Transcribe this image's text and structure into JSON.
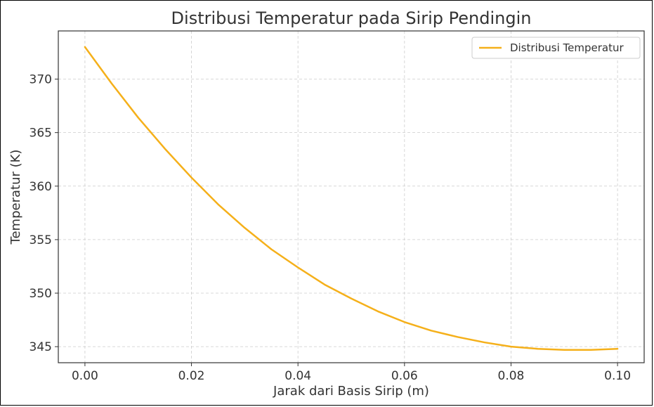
{
  "chart_data": {
    "type": "line",
    "title": "Distribusi Temperatur pada Sirip Pendingin",
    "xlabel": "Jarak dari Basis Sirip (m)",
    "ylabel": "Temperatur (K)",
    "xlim": [
      -0.005,
      0.105
    ],
    "ylim": [
      343.5,
      374.5
    ],
    "xticks": [
      0.0,
      0.02,
      0.04,
      0.06,
      0.08,
      0.1
    ],
    "xtick_labels": [
      "0.00",
      "0.02",
      "0.04",
      "0.06",
      "0.08",
      "0.10"
    ],
    "yticks": [
      345,
      350,
      355,
      360,
      365,
      370
    ],
    "ytick_labels": [
      "345",
      "350",
      "355",
      "360",
      "365",
      "370"
    ],
    "grid": true,
    "legend_position": "top-right",
    "series": [
      {
        "name": "Distribusi Temperatur",
        "color": "#f5b01a",
        "x": [
          0.0,
          0.005,
          0.01,
          0.015,
          0.02,
          0.025,
          0.03,
          0.035,
          0.04,
          0.045,
          0.05,
          0.055,
          0.06,
          0.065,
          0.07,
          0.075,
          0.08,
          0.085,
          0.09,
          0.095,
          0.1
        ],
        "y": [
          373.0,
          369.6,
          366.4,
          363.5,
          360.8,
          358.3,
          356.1,
          354.1,
          352.4,
          350.8,
          349.5,
          348.3,
          347.3,
          346.5,
          345.9,
          345.4,
          345.0,
          344.8,
          344.7,
          344.7,
          344.8
        ]
      }
    ]
  }
}
